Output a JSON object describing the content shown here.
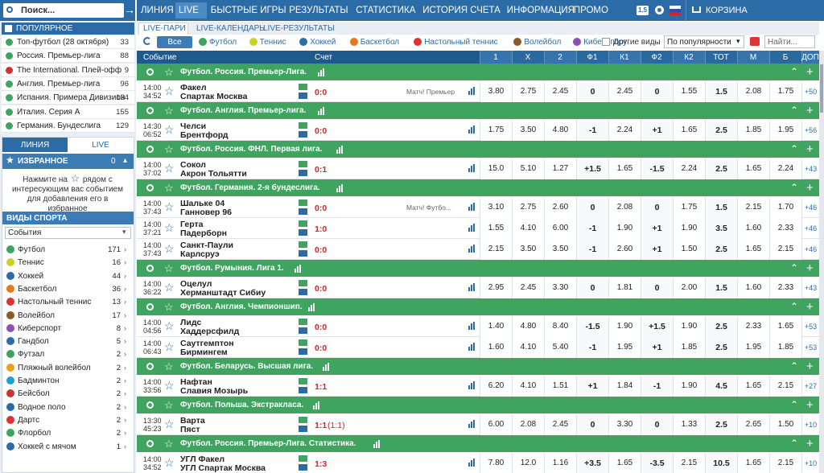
{
  "header": {
    "search": "Поиск...",
    "nav": [
      "ЛИНИЯ",
      "LIVE",
      "БЫСТРЫЕ ИГРЫ",
      "РЕЗУЛЬТАТЫ",
      "СТАТИСТИКА",
      "ИСТОРИЯ СЧЕТА",
      "ИНФОРМАЦИЯ",
      "ПРОМО"
    ],
    "version": "1.5",
    "cart": "КОРЗИНА"
  },
  "sidebar": {
    "popular_title": "ПОПУЛЯРНОЕ",
    "popular": [
      {
        "name": "Топ-футбол (28 октября)",
        "count": 33
      },
      {
        "name": "Россия. Премьер-лига",
        "count": 88
      },
      {
        "name": "The International. Плей-офф",
        "count": 9
      },
      {
        "name": "Англия. Премьер-лига",
        "count": 96
      },
      {
        "name": "Испания. Примера Дивизион",
        "count": 134
      },
      {
        "name": "Италия. Серия А",
        "count": 155
      },
      {
        "name": "Германия. Бундеслига",
        "count": 129
      }
    ],
    "tabs": [
      "ЛИНИЯ",
      "LIVE"
    ],
    "favorites_title": "ИЗБРАННОЕ",
    "favorites_count": 0,
    "favorites_hint_before": "Нажмите на",
    "favorites_hint_after": "рядом с интересующим вас событием для добавления его в избранное",
    "sports_title": "ВИДЫ СПОРТА",
    "sports_select": "События",
    "sports": [
      {
        "name": "Футбол",
        "count": 171
      },
      {
        "name": "Теннис",
        "count": 16
      },
      {
        "name": "Хоккей",
        "count": 44
      },
      {
        "name": "Баскетбол",
        "count": 36
      },
      {
        "name": "Настольный теннис",
        "count": 13
      },
      {
        "name": "Волейбол",
        "count": 17
      },
      {
        "name": "Киберспорт",
        "count": 8
      },
      {
        "name": "Гандбол",
        "count": 5
      },
      {
        "name": "Футзал",
        "count": 2
      },
      {
        "name": "Пляжный волейбол",
        "count": 2
      },
      {
        "name": "Бадминтон",
        "count": 2
      },
      {
        "name": "Бейсбол",
        "count": 2
      },
      {
        "name": "Водное поло",
        "count": 2
      },
      {
        "name": "Дартс",
        "count": 2
      },
      {
        "name": "Флорбол",
        "count": 2
      },
      {
        "name": "Хоккей с мячом",
        "count": 1
      }
    ]
  },
  "main": {
    "tabs": [
      "LIVE-ПАРИ",
      "LIVE-КАЛЕНДАРЬ",
      "LIVE-РЕЗУЛЬТАТЫ"
    ],
    "filter_all": "Все",
    "filters": [
      "Футбол",
      "Теннис",
      "Хоккей",
      "Баскетбол",
      "Настольный теннис",
      "Волейбол",
      "Киберспорт"
    ],
    "other_sports": "Другие виды",
    "sort": "По популярности",
    "search": "Найти...",
    "columns": {
      "event": "Событие",
      "score": "Счет",
      "odds": [
        "1",
        "X",
        "2",
        "Ф1",
        "К1",
        "Ф2",
        "К2",
        "ТОТ",
        "М",
        "Б",
        "ДОП"
      ]
    },
    "groups": [
      {
        "league": "Футбол. Россия. Премьер-Лига.",
        "matches": [
          {
            "date": "14:00",
            "clock": "34:52",
            "team1": "Факел",
            "team2": "Спартак Москва",
            "score": "0:0",
            "tv": "Матч! Премьер",
            "odds": [
              "3.80",
              "2.75",
              "2.45",
              "0",
              "2.45",
              "0",
              "1.55",
              "1.5",
              "2.08",
              "1.75"
            ],
            "more": "+50"
          }
        ]
      },
      {
        "league": "Футбол. Англия. Премьер-лига.",
        "matches": [
          {
            "date": "14:30",
            "clock": "06:52",
            "team1": "Челси",
            "team2": "Брентфорд",
            "score": "0:0",
            "odds": [
              "1.75",
              "3.50",
              "4.80",
              "-1",
              "2.24",
              "+1",
              "1.65",
              "2.5",
              "1.85",
              "1.95"
            ],
            "more": "+56"
          }
        ]
      },
      {
        "league": "Футбол. Россия. ФНЛ. Первая лига.",
        "matches": [
          {
            "date": "14:00",
            "clock": "37:02",
            "team1": "Сокол",
            "team2": "Акрон Тольятти",
            "score": "0:1",
            "odds": [
              "15.0",
              "5.10",
              "1.27",
              "+1.5",
              "1.65",
              "-1.5",
              "2.24",
              "2.5",
              "1.65",
              "2.24"
            ],
            "more": "+43"
          }
        ]
      },
      {
        "league": "Футбол. Германия. 2-я бундеслига.",
        "matches": [
          {
            "date": "14:00",
            "clock": "37:43",
            "team1": "Шальке 04",
            "team2": "Ганновер 96",
            "score": "0:0",
            "tv": "Матч! Футбо...",
            "odds": [
              "3.10",
              "2.75",
              "2.60",
              "0",
              "2.08",
              "0",
              "1.75",
              "1.5",
              "2.15",
              "1.70"
            ],
            "more": "+46"
          },
          {
            "date": "14:00",
            "clock": "37:21",
            "team1": "Герта",
            "team2": "Падерборн",
            "score": "1:0",
            "odds": [
              "1.55",
              "4.10",
              "6.00",
              "-1",
              "1.90",
              "+1",
              "1.90",
              "3.5",
              "1.60",
              "2.33"
            ],
            "more": "+46"
          },
          {
            "date": "14:00",
            "clock": "37:43",
            "team1": "Санкт-Паули",
            "team2": "Карлсруэ",
            "score": "0:0",
            "odds": [
              "2.15",
              "3.50",
              "3.50",
              "-1",
              "2.60",
              "+1",
              "1.50",
              "2.5",
              "1.65",
              "2.15"
            ],
            "more": "+46"
          }
        ]
      },
      {
        "league": "Футбол. Румыния. Лига 1.",
        "matches": [
          {
            "date": "14:00",
            "clock": "36:22",
            "team1": "Оцелул",
            "team2": "Херманштадт Сибиу",
            "score": "0:0",
            "odds": [
              "2.95",
              "2.45",
              "3.30",
              "0",
              "1.81",
              "0",
              "2.00",
              "1.5",
              "1.60",
              "2.33"
            ],
            "more": "+43"
          }
        ]
      },
      {
        "league": "Футбол. Англия. Чемпионшип.",
        "matches": [
          {
            "date": "14:00",
            "clock": "04:56",
            "team1": "Лидс",
            "team2": "Хаддерсфилд",
            "score": "0:0",
            "odds": [
              "1.40",
              "4.80",
              "8.40",
              "-1.5",
              "1.90",
              "+1.5",
              "1.90",
              "2.5",
              "2.33",
              "1.65"
            ],
            "more": "+53"
          },
          {
            "date": "14:00",
            "clock": "06:43",
            "team1": "Саутгемптон",
            "team2": "Бирмингем",
            "score": "0:0",
            "odds": [
              "1.60",
              "4.10",
              "5.40",
              "-1",
              "1.95",
              "+1",
              "1.85",
              "2.5",
              "1.95",
              "1.85"
            ],
            "more": "+53"
          }
        ]
      },
      {
        "league": "Футбол. Беларусь. Высшая лига.",
        "matches": [
          {
            "date": "14:00",
            "clock": "33:56",
            "team1": "Нафтан",
            "team2": "Славия Мозырь",
            "score": "1:1",
            "odds": [
              "6.20",
              "4.10",
              "1.51",
              "+1",
              "1.84",
              "-1",
              "1.90",
              "4.5",
              "1.65",
              "2.15"
            ],
            "more": "+27"
          }
        ]
      },
      {
        "league": "Футбол. Польша. Экстракласа.",
        "matches": [
          {
            "date": "13:30",
            "clock": "45:23",
            "team1": "Варта",
            "team2": "Пяст",
            "score": "1:1",
            "score_extra": "(1:1)",
            "odds": [
              "6.00",
              "2.08",
              "2.45",
              "0",
              "3.30",
              "0",
              "1.33",
              "2.5",
              "2.65",
              "1.50"
            ],
            "more": "+10"
          }
        ]
      },
      {
        "league": "Футбол. Россия. Премьер-Лига. Статистика.",
        "matches": [
          {
            "date": "14:00",
            "clock": "34:52",
            "team1": "УГЛ Факел",
            "team2": "УГЛ Спартак Москва",
            "score": "1:3",
            "odds": [
              "7.80",
              "12.0",
              "1.16",
              "+3.5",
              "1.65",
              "-3.5",
              "2.15",
              "10.5",
              "1.65",
              "2.15"
            ],
            "more": "+10"
          }
        ]
      }
    ]
  }
}
